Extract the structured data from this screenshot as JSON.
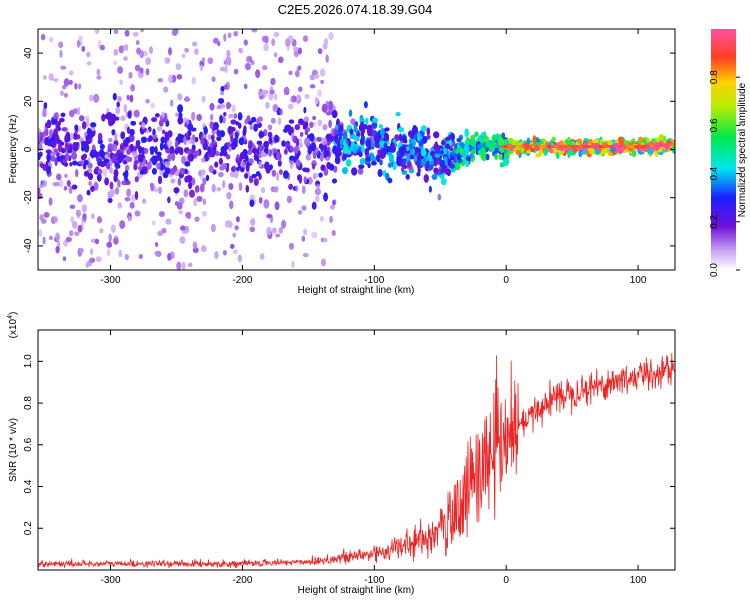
{
  "title": "C2E5.2026.074.18.39.G04",
  "chart_data": [
    {
      "type": "heatmap",
      "xlabel": "Height of straight line (km)",
      "ylabel": "Frequency (Hz)",
      "xlim": [
        -355,
        128
      ],
      "ylim": [
        -50,
        50
      ],
      "xticks": [
        -300,
        -200,
        -100,
        0,
        100
      ],
      "yticks": [
        -40,
        -20,
        0,
        20,
        40
      ],
      "colorbar": {
        "label": "Normalized spectral amplitude",
        "range": [
          0.0,
          1.0
        ],
        "ticks": [
          "0.0",
          "0.2",
          "0.4",
          "0.6",
          "0.8"
        ],
        "tick_values": [
          0.0,
          0.2,
          0.4,
          0.6,
          0.8
        ]
      },
      "ridge": {
        "description_points_height_km": [
          -355,
          -300,
          -200,
          -150,
          -100,
          -75,
          -55,
          -45,
          -35,
          -20,
          0,
          50,
          100,
          128
        ],
        "frequency_hz": [
          1,
          0,
          1,
          1,
          2,
          0,
          -4,
          -4,
          -1,
          1,
          1,
          1,
          1,
          2
        ]
      }
    },
    {
      "type": "line",
      "xlabel": "Height of straight line (km)",
      "ylabel": "SNR (10 * v/v)",
      "yscale_label": "(x10",
      "yscale_exp": "4",
      "yscale_close": ")",
      "xlim": [
        -355,
        128
      ],
      "ylim": [
        0,
        1.15
      ],
      "xticks": [
        -300,
        -200,
        -100,
        0,
        100
      ],
      "yticks": [
        "0.2",
        "0.4",
        "0.6",
        "0.8",
        "1.0"
      ],
      "ytick_values": [
        0.2,
        0.4,
        0.6,
        0.8,
        1.0
      ],
      "color": "#ee2222",
      "series": [
        {
          "name": "SNR",
          "x": [
            -355,
            -250,
            -200,
            -150,
            -120,
            -100,
            -80,
            -60,
            -45,
            -35,
            -25,
            -15,
            -10,
            0,
            10,
            20,
            30,
            40,
            60,
            80,
            100,
            115,
            128
          ],
          "values": [
            0.03,
            0.03,
            0.03,
            0.04,
            0.06,
            0.08,
            0.11,
            0.15,
            0.2,
            0.3,
            0.45,
            0.5,
            0.55,
            0.62,
            0.68,
            0.74,
            0.8,
            0.84,
            0.87,
            0.9,
            0.93,
            0.95,
            0.97
          ]
        }
      ]
    }
  ]
}
